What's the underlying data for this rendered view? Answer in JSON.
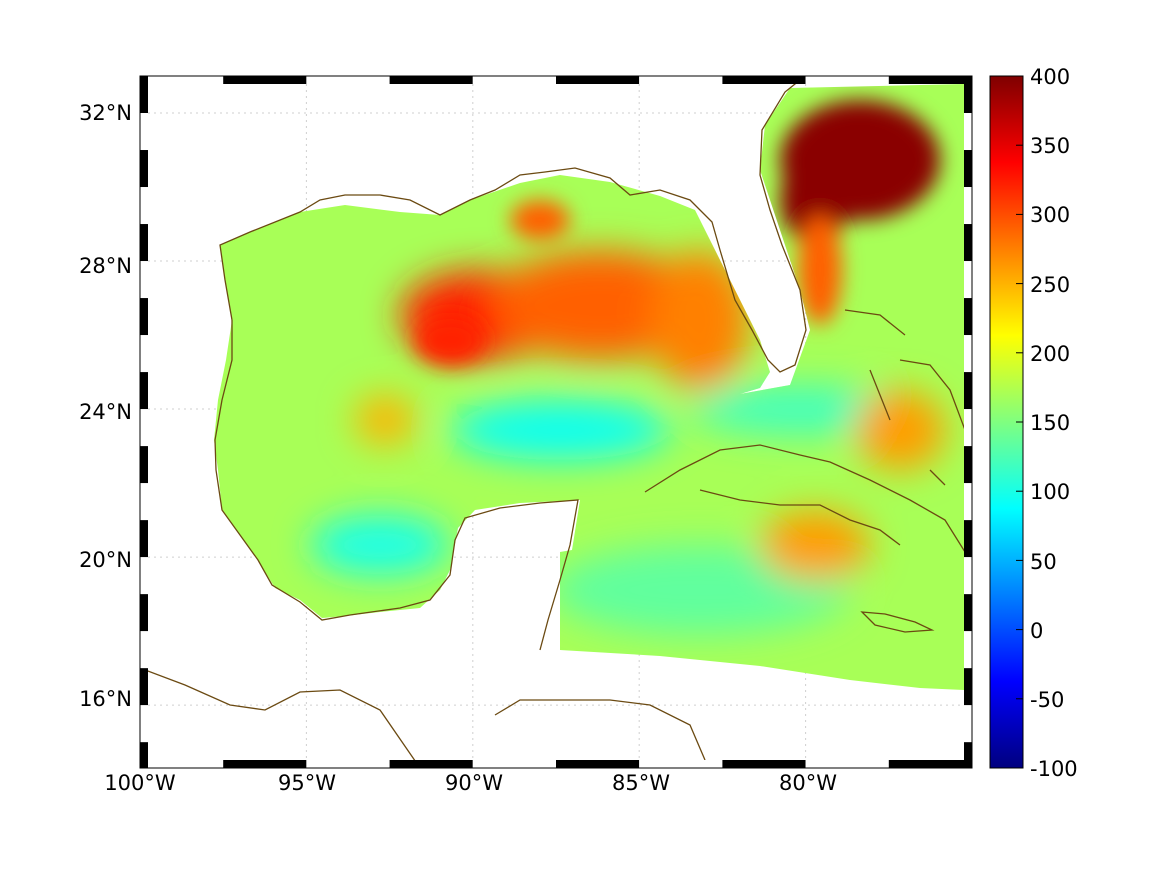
{
  "map": {
    "projection": "equirectangular",
    "extent": {
      "lon_min": -100,
      "lon_max": -75,
      "lat_min": 14.3,
      "lat_max": 33
    },
    "grid": "dotted",
    "frame_style": "black-and-white checkered border",
    "coastline_color": "#6b4a12",
    "no_data_color": "#ffffff"
  },
  "axes": {
    "x_ticks": [
      {
        "value": -100,
        "label": "100°W"
      },
      {
        "value": -95,
        "label": "95°W"
      },
      {
        "value": -90,
        "label": "90°W"
      },
      {
        "value": -85,
        "label": "85°W"
      },
      {
        "value": -80,
        "label": "80°W"
      }
    ],
    "y_ticks": [
      {
        "value": 16,
        "label": "16°N"
      },
      {
        "value": 20,
        "label": "20°N"
      },
      {
        "value": 24,
        "label": "24°N"
      },
      {
        "value": 28,
        "label": "28°N"
      },
      {
        "value": 32,
        "label": "32°N"
      }
    ]
  },
  "colorbar": {
    "colormap": "jet",
    "min": -100,
    "max": 400,
    "ticks": [
      {
        "value": 400,
        "label": "400"
      },
      {
        "value": 350,
        "label": "350"
      },
      {
        "value": 300,
        "label": "300"
      },
      {
        "value": 250,
        "label": "250"
      },
      {
        "value": 200,
        "label": "200"
      },
      {
        "value": 150,
        "label": "150"
      },
      {
        "value": 100,
        "label": "100"
      },
      {
        "value": 50,
        "label": "50"
      },
      {
        "value": 0,
        "label": "0"
      },
      {
        "value": -50,
        "label": "-50"
      },
      {
        "value": -100,
        "label": "-100"
      }
    ]
  },
  "field_regions": [
    {
      "name": "gulf-base",
      "value": 170
    },
    {
      "name": "north-central-gulf-max",
      "value": 320
    },
    {
      "name": "loop-current-core",
      "value": 290
    },
    {
      "name": "east-gulf-shelf",
      "value": 275
    },
    {
      "name": "atlantic-gulf-stream-max",
      "value": 395
    },
    {
      "name": "bay-of-campeche-low",
      "value": 100
    },
    {
      "name": "yucatan-channel-low",
      "value": 95
    },
    {
      "name": "florida-straits",
      "value": 120
    },
    {
      "name": "caribbean-south-cuba",
      "value": 260
    },
    {
      "name": "caribbean-base",
      "value": 135
    },
    {
      "name": "west-gulf-eddy",
      "value": 250
    }
  ]
}
